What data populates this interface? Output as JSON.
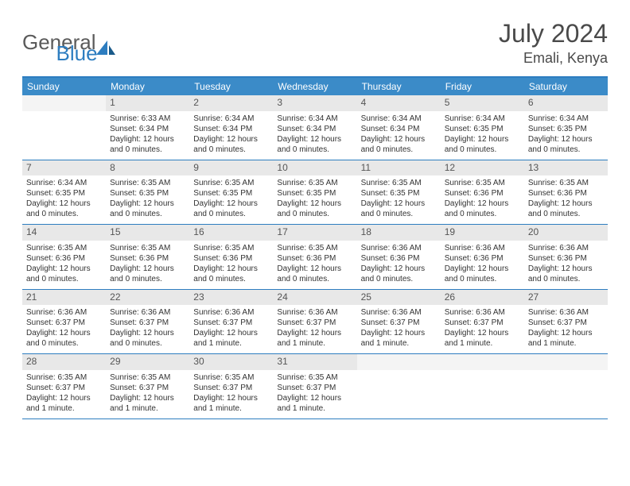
{
  "logo": {
    "text1": "General",
    "text2": "Blue"
  },
  "title": "July 2024",
  "location": "Emali, Kenya",
  "colors": {
    "header_bg": "#3b8bc8",
    "header_border": "#2d7dc0",
    "daynum_bg": "#e8e8e8",
    "text": "#333333"
  },
  "day_headers": [
    "Sunday",
    "Monday",
    "Tuesday",
    "Wednesday",
    "Thursday",
    "Friday",
    "Saturday"
  ],
  "weeks": [
    [
      {
        "n": "",
        "lines": []
      },
      {
        "n": "1",
        "lines": [
          "Sunrise: 6:33 AM",
          "Sunset: 6:34 PM",
          "Daylight: 12 hours and 0 minutes."
        ]
      },
      {
        "n": "2",
        "lines": [
          "Sunrise: 6:34 AM",
          "Sunset: 6:34 PM",
          "Daylight: 12 hours and 0 minutes."
        ]
      },
      {
        "n": "3",
        "lines": [
          "Sunrise: 6:34 AM",
          "Sunset: 6:34 PM",
          "Daylight: 12 hours and 0 minutes."
        ]
      },
      {
        "n": "4",
        "lines": [
          "Sunrise: 6:34 AM",
          "Sunset: 6:34 PM",
          "Daylight: 12 hours and 0 minutes."
        ]
      },
      {
        "n": "5",
        "lines": [
          "Sunrise: 6:34 AM",
          "Sunset: 6:35 PM",
          "Daylight: 12 hours and 0 minutes."
        ]
      },
      {
        "n": "6",
        "lines": [
          "Sunrise: 6:34 AM",
          "Sunset: 6:35 PM",
          "Daylight: 12 hours and 0 minutes."
        ]
      }
    ],
    [
      {
        "n": "7",
        "lines": [
          "Sunrise: 6:34 AM",
          "Sunset: 6:35 PM",
          "Daylight: 12 hours and 0 minutes."
        ]
      },
      {
        "n": "8",
        "lines": [
          "Sunrise: 6:35 AM",
          "Sunset: 6:35 PM",
          "Daylight: 12 hours and 0 minutes."
        ]
      },
      {
        "n": "9",
        "lines": [
          "Sunrise: 6:35 AM",
          "Sunset: 6:35 PM",
          "Daylight: 12 hours and 0 minutes."
        ]
      },
      {
        "n": "10",
        "lines": [
          "Sunrise: 6:35 AM",
          "Sunset: 6:35 PM",
          "Daylight: 12 hours and 0 minutes."
        ]
      },
      {
        "n": "11",
        "lines": [
          "Sunrise: 6:35 AM",
          "Sunset: 6:35 PM",
          "Daylight: 12 hours and 0 minutes."
        ]
      },
      {
        "n": "12",
        "lines": [
          "Sunrise: 6:35 AM",
          "Sunset: 6:36 PM",
          "Daylight: 12 hours and 0 minutes."
        ]
      },
      {
        "n": "13",
        "lines": [
          "Sunrise: 6:35 AM",
          "Sunset: 6:36 PM",
          "Daylight: 12 hours and 0 minutes."
        ]
      }
    ],
    [
      {
        "n": "14",
        "lines": [
          "Sunrise: 6:35 AM",
          "Sunset: 6:36 PM",
          "Daylight: 12 hours and 0 minutes."
        ]
      },
      {
        "n": "15",
        "lines": [
          "Sunrise: 6:35 AM",
          "Sunset: 6:36 PM",
          "Daylight: 12 hours and 0 minutes."
        ]
      },
      {
        "n": "16",
        "lines": [
          "Sunrise: 6:35 AM",
          "Sunset: 6:36 PM",
          "Daylight: 12 hours and 0 minutes."
        ]
      },
      {
        "n": "17",
        "lines": [
          "Sunrise: 6:35 AM",
          "Sunset: 6:36 PM",
          "Daylight: 12 hours and 0 minutes."
        ]
      },
      {
        "n": "18",
        "lines": [
          "Sunrise: 6:36 AM",
          "Sunset: 6:36 PM",
          "Daylight: 12 hours and 0 minutes."
        ]
      },
      {
        "n": "19",
        "lines": [
          "Sunrise: 6:36 AM",
          "Sunset: 6:36 PM",
          "Daylight: 12 hours and 0 minutes."
        ]
      },
      {
        "n": "20",
        "lines": [
          "Sunrise: 6:36 AM",
          "Sunset: 6:36 PM",
          "Daylight: 12 hours and 0 minutes."
        ]
      }
    ],
    [
      {
        "n": "21",
        "lines": [
          "Sunrise: 6:36 AM",
          "Sunset: 6:37 PM",
          "Daylight: 12 hours and 0 minutes."
        ]
      },
      {
        "n": "22",
        "lines": [
          "Sunrise: 6:36 AM",
          "Sunset: 6:37 PM",
          "Daylight: 12 hours and 0 minutes."
        ]
      },
      {
        "n": "23",
        "lines": [
          "Sunrise: 6:36 AM",
          "Sunset: 6:37 PM",
          "Daylight: 12 hours and 1 minute."
        ]
      },
      {
        "n": "24",
        "lines": [
          "Sunrise: 6:36 AM",
          "Sunset: 6:37 PM",
          "Daylight: 12 hours and 1 minute."
        ]
      },
      {
        "n": "25",
        "lines": [
          "Sunrise: 6:36 AM",
          "Sunset: 6:37 PM",
          "Daylight: 12 hours and 1 minute."
        ]
      },
      {
        "n": "26",
        "lines": [
          "Sunrise: 6:36 AM",
          "Sunset: 6:37 PM",
          "Daylight: 12 hours and 1 minute."
        ]
      },
      {
        "n": "27",
        "lines": [
          "Sunrise: 6:36 AM",
          "Sunset: 6:37 PM",
          "Daylight: 12 hours and 1 minute."
        ]
      }
    ],
    [
      {
        "n": "28",
        "lines": [
          "Sunrise: 6:35 AM",
          "Sunset: 6:37 PM",
          "Daylight: 12 hours and 1 minute."
        ]
      },
      {
        "n": "29",
        "lines": [
          "Sunrise: 6:35 AM",
          "Sunset: 6:37 PM",
          "Daylight: 12 hours and 1 minute."
        ]
      },
      {
        "n": "30",
        "lines": [
          "Sunrise: 6:35 AM",
          "Sunset: 6:37 PM",
          "Daylight: 12 hours and 1 minute."
        ]
      },
      {
        "n": "31",
        "lines": [
          "Sunrise: 6:35 AM",
          "Sunset: 6:37 PM",
          "Daylight: 12 hours and 1 minute."
        ]
      },
      {
        "n": "",
        "lines": []
      },
      {
        "n": "",
        "lines": []
      },
      {
        "n": "",
        "lines": []
      }
    ]
  ]
}
